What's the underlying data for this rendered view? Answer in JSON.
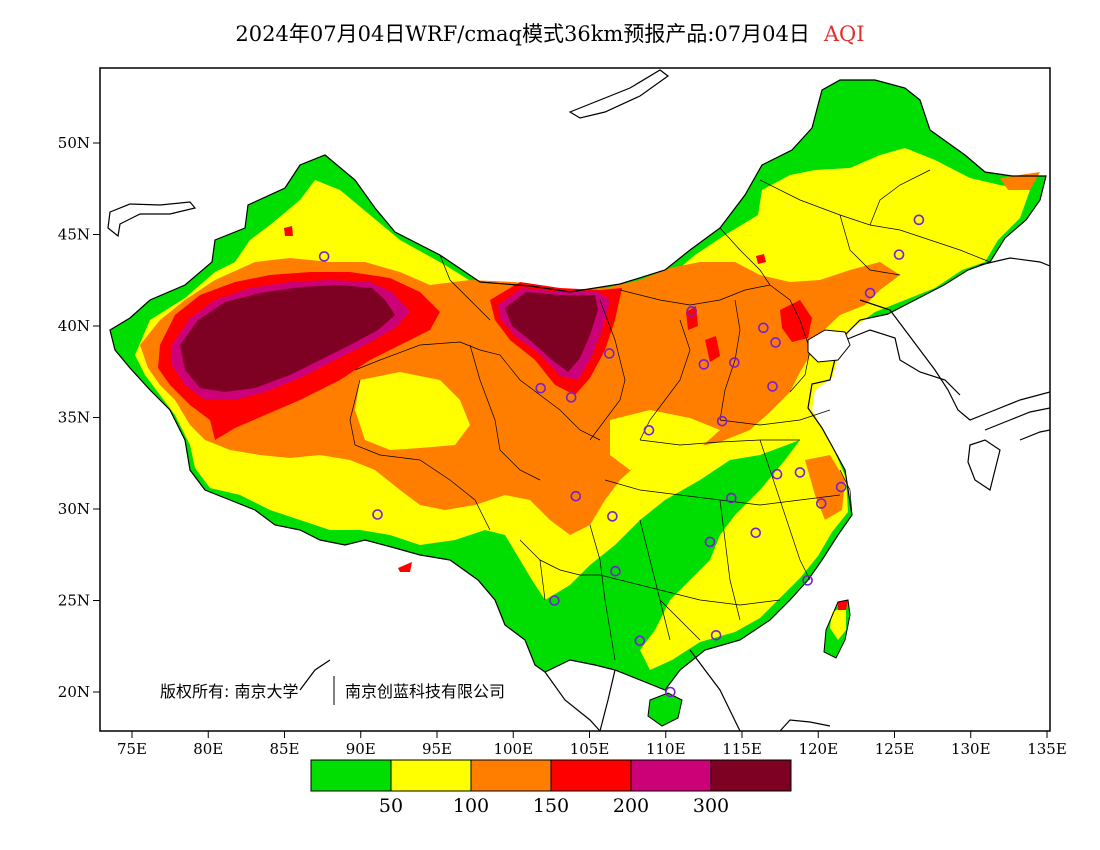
{
  "title": {
    "main": "2024年07月04日WRF/cmaq模式36km预报产品:07月04日",
    "product": "AQI",
    "product_color": "#e03030"
  },
  "axes": {
    "lon_ticks": [
      "75E",
      "80E",
      "85E",
      "90E",
      "95E",
      "100E",
      "105E",
      "110E",
      "115E",
      "120E",
      "125E",
      "130E",
      "135E"
    ],
    "lat_ticks": [
      "50N",
      "45N",
      "40N",
      "35N",
      "30N",
      "25N",
      "20N"
    ]
  },
  "copyright": {
    "part1": "版权所有: 南京大学",
    "part2": "南京创蓝科技有限公司"
  },
  "legend": {
    "colors": [
      "#00dd00",
      "#ffff00",
      "#ff7e00",
      "#ff0000",
      "#cc0077",
      "#7e0023"
    ],
    "labels": [
      "50",
      "100",
      "150",
      "200",
      "300"
    ]
  },
  "stations": [
    {
      "lon": 87.6,
      "lat": 43.8
    },
    {
      "lon": 91.1,
      "lat": 29.7
    },
    {
      "lon": 101.8,
      "lat": 36.6
    },
    {
      "lon": 103.8,
      "lat": 36.1
    },
    {
      "lon": 106.3,
      "lat": 38.5
    },
    {
      "lon": 111.7,
      "lat": 40.8
    },
    {
      "lon": 112.5,
      "lat": 37.9
    },
    {
      "lon": 114.5,
      "lat": 38.0
    },
    {
      "lon": 116.4,
      "lat": 39.9
    },
    {
      "lon": 117.2,
      "lat": 39.1
    },
    {
      "lon": 117.0,
      "lat": 36.7
    },
    {
      "lon": 113.7,
      "lat": 34.8
    },
    {
      "lon": 108.9,
      "lat": 34.3
    },
    {
      "lon": 104.1,
      "lat": 30.7
    },
    {
      "lon": 106.5,
      "lat": 29.6
    },
    {
      "lon": 106.7,
      "lat": 26.6
    },
    {
      "lon": 102.7,
      "lat": 25.0
    },
    {
      "lon": 108.3,
      "lat": 22.8
    },
    {
      "lon": 113.3,
      "lat": 23.1
    },
    {
      "lon": 110.3,
      "lat": 20.0
    },
    {
      "lon": 112.9,
      "lat": 28.2
    },
    {
      "lon": 114.3,
      "lat": 30.6
    },
    {
      "lon": 115.9,
      "lat": 28.7
    },
    {
      "lon": 117.3,
      "lat": 31.9
    },
    {
      "lon": 118.8,
      "lat": 32.0
    },
    {
      "lon": 120.2,
      "lat": 30.3
    },
    {
      "lon": 121.5,
      "lat": 31.2
    },
    {
      "lon": 119.3,
      "lat": 26.1
    },
    {
      "lon": 123.4,
      "lat": 41.8
    },
    {
      "lon": 125.3,
      "lat": 43.9
    },
    {
      "lon": 126.6,
      "lat": 45.8
    }
  ]
}
